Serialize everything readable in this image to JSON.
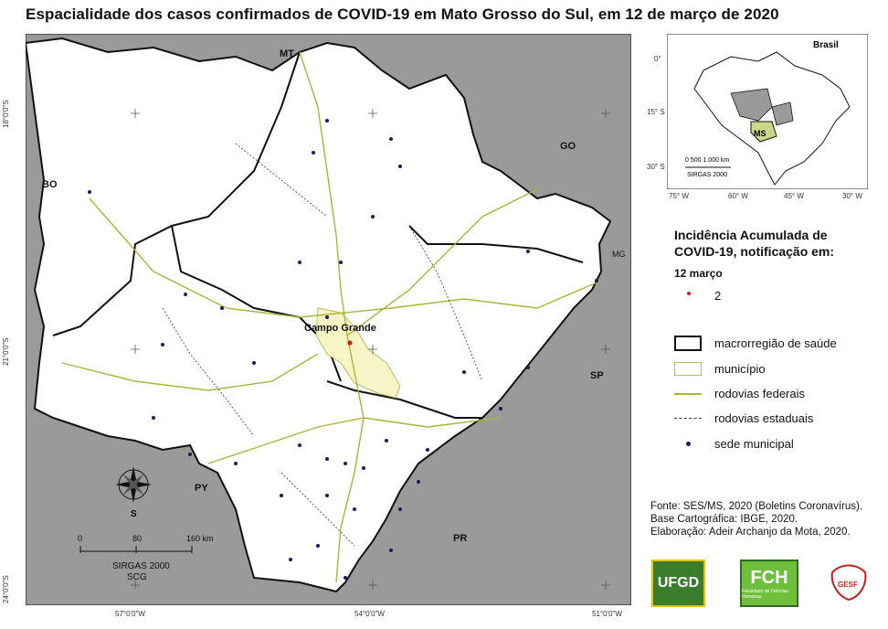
{
  "title": "Espacialidade dos casos confirmados de COVID-19 em Mato Grosso do Sul, em 12 de março de 2020",
  "map": {
    "neighbors": {
      "mt": "MT",
      "go": "GO",
      "mg": "MG",
      "sp": "SP",
      "pr": "PR",
      "py": "PY",
      "bo": "BO"
    },
    "city_label": "Campo Grande",
    "lat_ticks": [
      "18°0'0\"S",
      "21°0'0\"S",
      "24°0'0\"S"
    ],
    "lon_ticks": [
      "57°0'0\"W",
      "54°0'0\"W",
      "51°0'0\"W"
    ],
    "compass_label": "S",
    "scale_ticks": [
      "0",
      "80",
      "160 km"
    ],
    "scale_caption": "SIRGAS 2000",
    "scale_caption2": "SCG",
    "colors": {
      "land": "#ffffff",
      "outside": "#9a9a9a",
      "highlight": "#f7f5c8",
      "roads": "#a9b53a",
      "case": "#d21a1a",
      "seat": "#1a1a5a"
    }
  },
  "inset": {
    "country": "Brasil",
    "ms_label": "MS",
    "lat_ticks": [
      "0°",
      "15° S",
      "30° S"
    ],
    "lon_ticks": [
      "75° W",
      "60° W",
      "45° W",
      "30° W"
    ],
    "scale_label": "0   500 1.000 km",
    "scale_caption": "SIRGAS 2000"
  },
  "legend": {
    "title": "Incidência Acumulada de COVID-19, notificação em:",
    "date": "12 março",
    "count": "2",
    "items": [
      {
        "label": "macrorregião de saúde"
      },
      {
        "label": "município"
      },
      {
        "label": "rodovias federais"
      },
      {
        "label": "rodovias estaduais"
      },
      {
        "label": "sede municipal"
      }
    ]
  },
  "source": {
    "line1": "Fonte: SES/MS, 2020 (Boletins Coronavírus).",
    "line2": "Base Cartográfica: IBGE, 2020.",
    "line3": "Elaboração: Adeir Archanjo da Mota, 2020."
  },
  "logos": {
    "ufgd": "UFGD",
    "fch": "FCH",
    "fch_sub": "Faculdade de Ciências Humanas",
    "gesf": "GESF"
  }
}
